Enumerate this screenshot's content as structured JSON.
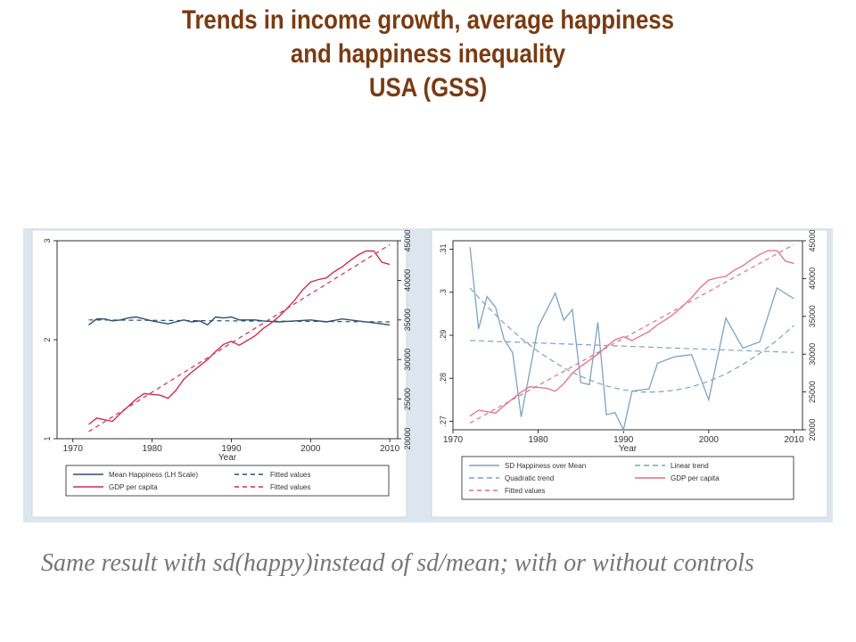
{
  "title": {
    "line1": "Trends in income growth, average happiness",
    "line2": "and happiness inequality",
    "line3": "USA (GSS)"
  },
  "caption": "Same result with sd(happy)instead of sd/mean; with or without controls",
  "colors": {
    "title": "#7a3b12",
    "panel_bg": "#dde6ee",
    "happiness": "#2f4f6e",
    "gdp": "#c8314f",
    "sd_series": "#7ea3bf",
    "sd_trend": "#7ea3bf",
    "gdp_light": "#e0708a"
  },
  "chart_data": [
    {
      "type": "line",
      "xlabel": "Year",
      "xticks": [
        1970,
        1980,
        1990,
        2000,
        2010
      ],
      "xlim": [
        1968,
        2011
      ],
      "left_axis": {
        "ylim": [
          1,
          3
        ],
        "ticks": [
          "1",
          "2",
          "3"
        ]
      },
      "right_axis": {
        "ylim": [
          20000,
          45000
        ],
        "ticks": [
          "20000",
          "25000",
          "30000",
          "35000",
          "40000",
          "45000"
        ]
      },
      "series": [
        {
          "name": "Mean Happiness (LH Scale)",
          "axis": "left",
          "style": "solid",
          "x": [
            1972,
            1973,
            1974,
            1975,
            1976,
            1977,
            1978,
            1980,
            1982,
            1983,
            1984,
            1985,
            1986,
            1987,
            1988,
            1989,
            1990,
            1991,
            1993,
            1994,
            1996,
            1998,
            2000,
            2002,
            2004,
            2006,
            2008,
            2010
          ],
          "values": [
            2.15,
            2.21,
            2.21,
            2.19,
            2.2,
            2.22,
            2.23,
            2.19,
            2.16,
            2.18,
            2.2,
            2.18,
            2.19,
            2.15,
            2.23,
            2.22,
            2.23,
            2.2,
            2.2,
            2.19,
            2.18,
            2.19,
            2.2,
            2.18,
            2.21,
            2.19,
            2.17,
            2.15
          ]
        },
        {
          "name": "Fitted values",
          "axis": "left",
          "style": "dashed",
          "x": [
            1972,
            2010
          ],
          "values": [
            2.2,
            2.18
          ]
        },
        {
          "name": "GDP per capita",
          "axis": "right",
          "style": "solid",
          "x": [
            1972,
            1973,
            1975,
            1976,
            1977,
            1978,
            1979,
            1980,
            1981,
            1982,
            1983,
            1984,
            1985,
            1986,
            1987,
            1988,
            1989,
            1990,
            1991,
            1992,
            1993,
            1994,
            1995,
            1996,
            1997,
            1998,
            1999,
            2000,
            2001,
            2002,
            2003,
            2004,
            2005,
            2006,
            2007,
            2008,
            2009,
            2010
          ],
          "values": [
            21800,
            22600,
            22200,
            23200,
            24100,
            25000,
            25700,
            25600,
            25500,
            25100,
            26100,
            27500,
            28400,
            29200,
            30000,
            31000,
            31900,
            32300,
            31800,
            32400,
            33000,
            33900,
            34600,
            35400,
            36400,
            37500,
            38800,
            39800,
            40100,
            40300,
            41100,
            41700,
            42500,
            43200,
            43700,
            43700,
            42300,
            42000
          ]
        },
        {
          "name": "Fitted values",
          "axis": "right",
          "style": "dashed",
          "x": [
            1972,
            2010
          ],
          "values": [
            20900,
            44500
          ]
        }
      ],
      "legend": {
        "position": "bottom",
        "entries": [
          "Mean Happiness (LH Scale)",
          "Fitted values",
          "GDP per capita",
          "Fitted values"
        ]
      }
    },
    {
      "type": "line",
      "xlabel": "Year",
      "xticks": [
        1970,
        1980,
        1990,
        2000,
        2010
      ],
      "xlim": [
        1970,
        2011
      ],
      "left_axis": {
        "ylim": [
          0.268,
          0.312
        ],
        "ticks": [
          ".27",
          ".28",
          ".29",
          ".3",
          ".31"
        ]
      },
      "right_axis": {
        "ylim": [
          20000,
          45000
        ],
        "ticks": [
          "20000",
          "25000",
          "30000",
          "35000",
          "40000",
          "45000"
        ]
      },
      "series": [
        {
          "name": "SD Happiness over Mean",
          "axis": "left",
          "style": "solid",
          "x": [
            1972,
            1973,
            1974,
            1975,
            1976,
            1977,
            1978,
            1980,
            1982,
            1983,
            1984,
            1985,
            1986,
            1987,
            1988,
            1989,
            1990,
            1991,
            1993,
            1994,
            1996,
            1998,
            2000,
            2002,
            2004,
            2006,
            2008,
            2010
          ],
          "values": [
            0.3105,
            0.2915,
            0.299,
            0.2965,
            0.289,
            0.286,
            0.271,
            0.292,
            0.2998,
            0.2935,
            0.296,
            0.279,
            0.2785,
            0.293,
            0.2715,
            0.272,
            0.268,
            0.277,
            0.2775,
            0.2835,
            0.285,
            0.2855,
            0.275,
            0.294,
            0.287,
            0.2885,
            0.301,
            0.2985
          ]
        },
        {
          "name": "Linear trend",
          "axis": "left",
          "style": "dashed",
          "x": [
            1972,
            2010
          ],
          "values": [
            0.2888,
            0.286
          ]
        },
        {
          "name": "Quadratic trend",
          "axis": "left",
          "style": "dashed",
          "x": [
            1972,
            1974,
            1976,
            1978,
            1980,
            1982,
            1984,
            1986,
            1988,
            1990,
            1992,
            1994,
            1996,
            1998,
            2000,
            2002,
            2004,
            2006,
            2008,
            2010
          ],
          "values": [
            0.301,
            0.2967,
            0.2928,
            0.2893,
            0.2862,
            0.2836,
            0.2813,
            0.2796,
            0.2782,
            0.2773,
            0.2768,
            0.2768,
            0.2772,
            0.278,
            0.2793,
            0.281,
            0.2832,
            0.2858,
            0.2888,
            0.2923
          ]
        },
        {
          "name": "GDP per capita",
          "axis": "right",
          "style": "solid",
          "x": [
            1972,
            1973,
            1975,
            1976,
            1977,
            1978,
            1979,
            1980,
            1981,
            1982,
            1983,
            1984,
            1985,
            1986,
            1987,
            1988,
            1989,
            1990,
            1991,
            1992,
            1993,
            1994,
            1995,
            1996,
            1997,
            1998,
            1999,
            2000,
            2001,
            2002,
            2003,
            2004,
            2005,
            2006,
            2007,
            2008,
            2009,
            2010
          ],
          "values": [
            21800,
            22600,
            22200,
            23200,
            24100,
            25000,
            25700,
            25600,
            25500,
            25100,
            26100,
            27500,
            28400,
            29200,
            30000,
            31000,
            31900,
            32300,
            31800,
            32400,
            33000,
            33900,
            34600,
            35400,
            36400,
            37500,
            38800,
            39800,
            40100,
            40300,
            41100,
            41700,
            42500,
            43200,
            43700,
            43700,
            42300,
            42000
          ]
        },
        {
          "name": "Fitted values",
          "axis": "right",
          "style": "dashed",
          "x": [
            1972,
            2010
          ],
          "values": [
            20900,
            44500
          ]
        }
      ],
      "legend": {
        "position": "bottom",
        "entries": [
          "SD Happiness over Mean",
          "Linear trend",
          "Quadratic trend",
          "GDP per capita",
          "Fitted values"
        ]
      }
    }
  ]
}
